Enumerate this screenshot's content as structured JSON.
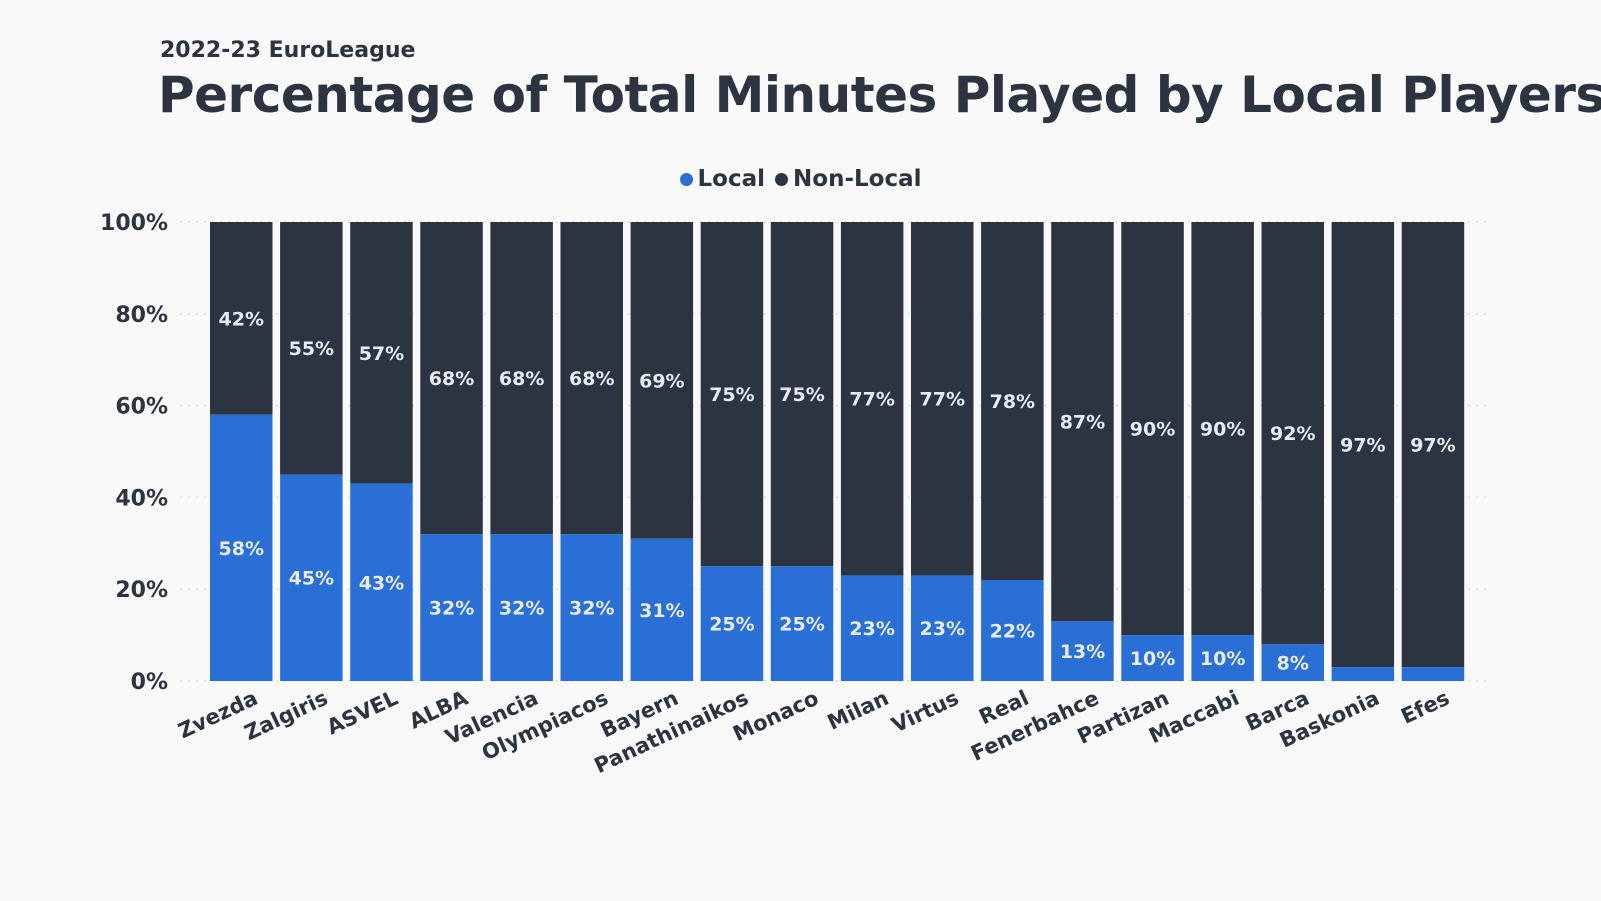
{
  "subtitle": "2022-23 EuroLeague",
  "title": "Percentage of Total Minutes Played by Local Players",
  "legend": [
    {
      "label": "Local",
      "color": "#2a6fd6"
    },
    {
      "label": "Non-Local",
      "color": "#2b3440"
    }
  ],
  "chart_data": {
    "type": "bar",
    "stacked": true,
    "title": "Percentage of Total Minutes Played by Local Players",
    "subtitle": "2022-23 EuroLeague",
    "categories": [
      "Zvezda",
      "Zalgiris",
      "ASVEL",
      "ALBA",
      "Valencia",
      "Olympiacos",
      "Bayern",
      "Panathinaikos",
      "Monaco",
      "Milan",
      "Virtus",
      "Real",
      "Fenerbahce",
      "Partizan",
      "Maccabi",
      "Barca",
      "Baskonia",
      "Efes"
    ],
    "series": [
      {
        "name": "Local",
        "color": "#2a6fd6",
        "values": [
          58,
          45,
          43,
          32,
          32,
          32,
          31,
          25,
          25,
          23,
          23,
          22,
          13,
          10,
          10,
          8,
          3,
          3
        ],
        "labels": [
          "58%",
          "45%",
          "43%",
          "32%",
          "32%",
          "32%",
          "31%",
          "25%",
          "25%",
          "23%",
          "23%",
          "22%",
          "13%",
          "10%",
          "10%",
          "8%",
          "",
          ""
        ]
      },
      {
        "name": "Non-Local",
        "color": "#2b3440",
        "values": [
          42,
          55,
          57,
          68,
          68,
          68,
          69,
          75,
          75,
          77,
          77,
          78,
          87,
          90,
          90,
          92,
          97,
          97
        ],
        "labels": [
          "42%",
          "55%",
          "57%",
          "68%",
          "68%",
          "68%",
          "69%",
          "75%",
          "75%",
          "77%",
          "77%",
          "78%",
          "87%",
          "90%",
          "90%",
          "92%",
          "97%",
          "97%"
        ]
      }
    ],
    "yticks": [
      "0%",
      "20%",
      "40%",
      "60%",
      "80%",
      "100%"
    ],
    "ylim": [
      0,
      100
    ],
    "xlabel": "",
    "ylabel": "",
    "grid": true,
    "legend_position": "top-center"
  }
}
